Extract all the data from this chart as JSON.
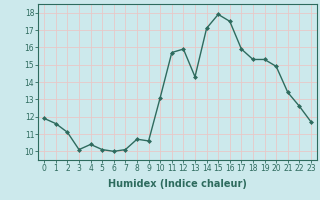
{
  "x": [
    0,
    1,
    2,
    3,
    4,
    5,
    6,
    7,
    8,
    9,
    10,
    11,
    12,
    13,
    14,
    15,
    16,
    17,
    18,
    19,
    20,
    21,
    22,
    23
  ],
  "y": [
    11.9,
    11.6,
    11.1,
    10.1,
    10.4,
    10.1,
    10.0,
    10.1,
    10.7,
    10.6,
    13.1,
    15.7,
    15.9,
    14.3,
    17.1,
    17.9,
    17.5,
    15.9,
    15.3,
    15.3,
    14.9,
    13.4,
    12.6,
    11.7
  ],
  "line_color": "#2e6b5e",
  "marker": "D",
  "marker_size": 2,
  "bg_color": "#cce9ec",
  "grid_color": "#e8c8c8",
  "xlabel": "Humidex (Indice chaleur)",
  "xlabel_fontsize": 7,
  "xlim": [
    -0.5,
    23.5
  ],
  "ylim": [
    9.5,
    18.5
  ],
  "yticks": [
    10,
    11,
    12,
    13,
    14,
    15,
    16,
    17,
    18
  ],
  "xticks": [
    0,
    1,
    2,
    3,
    4,
    5,
    6,
    7,
    8,
    9,
    10,
    11,
    12,
    13,
    14,
    15,
    16,
    17,
    18,
    19,
    20,
    21,
    22,
    23
  ],
  "tick_fontsize": 5.5,
  "tick_color": "#2e6b5e",
  "axis_color": "#2e6b5e",
  "linewidth": 1.0
}
